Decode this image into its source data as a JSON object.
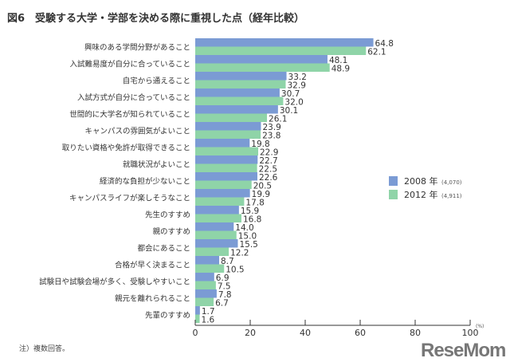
{
  "chart_data": {
    "type": "bar",
    "orientation": "horizontal",
    "title": "図6　受験する大学・学部を決める際に重視した点（経年比較）",
    "categories": [
      "興味のある学問分野があること",
      "入試難易度が自分に合っていること",
      "自宅から通えること",
      "入試方式が自分に合っていること",
      "世間的に大学名が知られていること",
      "キャンパスの雰囲気がよいこと",
      "取りたい資格や免許が取得できること",
      "就職状況がよいこと",
      "経済的な負担が少ないこと",
      "キャンパスライフが楽しそうなこと",
      "先生のすすめ",
      "親のすすめ",
      "都会にあること",
      "合格が早く決まること",
      "試験日や試験会場が多く、受験しやすいこと",
      "親元を離れられること",
      "先輩のすすめ"
    ],
    "series": [
      {
        "name": "2008 年",
        "n": "(4,070)",
        "color": "#7b9bd4",
        "values": [
          64.8,
          48.1,
          33.2,
          30.7,
          30.1,
          23.9,
          19.8,
          22.7,
          22.6,
          19.9,
          15.9,
          14.0,
          15.5,
          8.7,
          6.9,
          7.8,
          1.7
        ]
      },
      {
        "name": "2012 年",
        "n": "(4,911)",
        "color": "#8fd4a8",
        "values": [
          62.1,
          48.9,
          32.9,
          32.0,
          26.1,
          23.8,
          22.9,
          22.5,
          20.5,
          17.8,
          16.8,
          15.0,
          12.2,
          10.5,
          7.5,
          6.7,
          1.6
        ]
      }
    ],
    "xlim": [
      0,
      100
    ],
    "xticks": [
      0,
      20,
      40,
      60,
      80,
      100
    ],
    "unit": "(%)",
    "legend_placement": "right",
    "grid": false
  },
  "note": "注）複数回答。",
  "watermark": "ReseMom"
}
